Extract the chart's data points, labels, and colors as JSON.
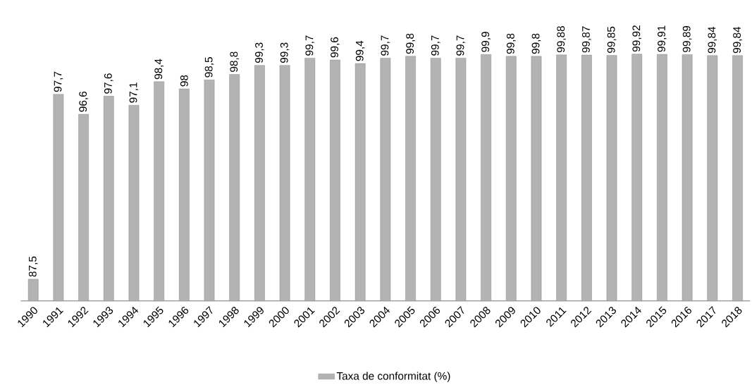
{
  "chart_data": {
    "type": "bar",
    "categories": [
      "1990",
      "1991",
      "1992",
      "1993",
      "1994",
      "1995",
      "1996",
      "1997",
      "1998",
      "1999",
      "2000",
      "2001",
      "2002",
      "2003",
      "2004",
      "2005",
      "2006",
      "2007",
      "2008",
      "2009",
      "2010",
      "2011",
      "2012",
      "2013",
      "2014",
      "2015",
      "2016",
      "2017",
      "2018"
    ],
    "series": [
      {
        "name": "Taxa de conformitat (%)",
        "color": "#b3b3b3",
        "values": [
          87.5,
          97.7,
          96.6,
          97.6,
          97.1,
          98.4,
          98,
          98.5,
          98.8,
          99.3,
          99.3,
          99.7,
          99.6,
          99.4,
          99.7,
          99.8,
          99.7,
          99.7,
          99.9,
          99.8,
          99.8,
          99.88,
          99.87,
          99.85,
          99.92,
          99.91,
          99.89,
          99.84,
          99.84
        ],
        "value_labels": [
          "87,5",
          "97,7",
          "96,6",
          "97,6",
          "97,1",
          "98,4",
          "98",
          "98,5",
          "98,8",
          "99,3",
          "99,3",
          "99,7",
          "99,6",
          "99,4",
          "99,7",
          "99,8",
          "99,7",
          "99,7",
          "99,9",
          "99,8",
          "99,8",
          "99,88",
          "99,87",
          "99,85",
          "99,92",
          "99,91",
          "99,89",
          "99,84",
          "99,84"
        ]
      }
    ],
    "ylim": [
      86.3,
      100
    ],
    "tick_labels": "x",
    "legend": "bottom",
    "grid": false
  }
}
